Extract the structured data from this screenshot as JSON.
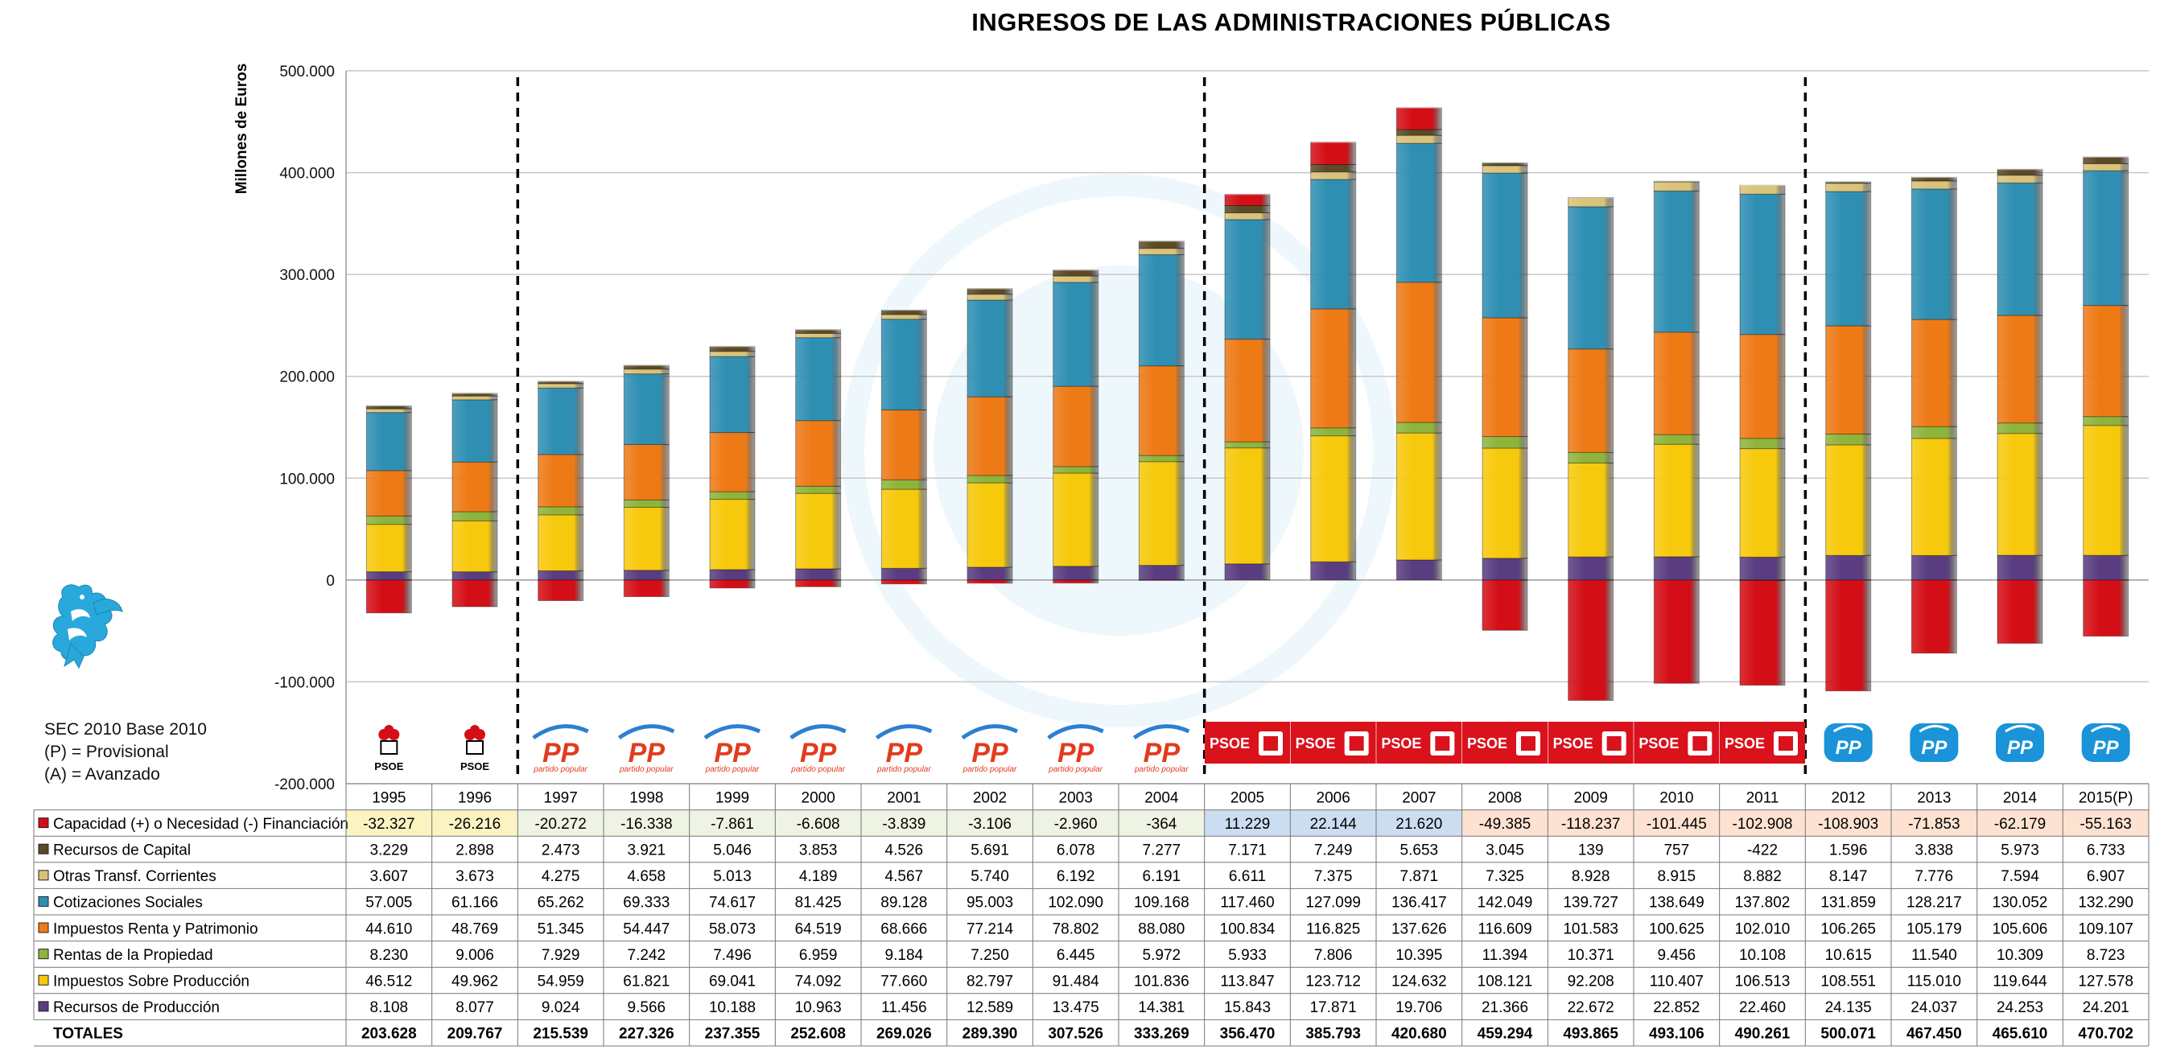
{
  "chart_data": {
    "type": "bar",
    "stacked": true,
    "title": "INGRESOS DE LAS ADMINISTRACIONES PÚBLICAS",
    "ylabel": "Millones de Euros",
    "ylim": [
      -200000,
      500000
    ],
    "yticks": [
      "500.000",
      "400.000",
      "300.000",
      "200.000",
      "100.000",
      "0",
      "-100.000",
      "-200.000"
    ],
    "ytick_values": [
      500000,
      400000,
      300000,
      200000,
      100000,
      0,
      -100000,
      -200000
    ],
    "grid": true,
    "categories": [
      "1995",
      "1996",
      "1997",
      "1998",
      "1999",
      "2000",
      "2001",
      "2002",
      "2003",
      "2004",
      "2005",
      "2006",
      "2007",
      "2008",
      "2009",
      "2010",
      "2011",
      "2012",
      "2013",
      "2014",
      "2015(P)"
    ],
    "series": [
      {
        "name": "Capacidad (+) o Necesidad (-) Financiación",
        "color": "#d40e16",
        "labels": [
          "-32.327",
          "-26.216",
          "-20.272",
          "-16.338",
          "-7.861",
          "-6.608",
          "-3.839",
          "-3.106",
          "-2.960",
          "-364",
          "11.229",
          "22.144",
          "21.620",
          "-49.385",
          "-118.237",
          "-101.445",
          "-102.908",
          "-108.903",
          "-71.853",
          "-62.179",
          "-55.163"
        ],
        "values": [
          -32327,
          -26216,
          -20272,
          -16338,
          -7861,
          -6608,
          -3839,
          -3106,
          -2960,
          -364,
          11229,
          22144,
          21620,
          -49385,
          -118237,
          -101445,
          -102908,
          -108903,
          -71853,
          -62179,
          -55163
        ]
      },
      {
        "name": "Recursos de Capital",
        "color": "#5a4a26",
        "labels": [
          "3.229",
          "2.898",
          "2.473",
          "3.921",
          "5.046",
          "3.853",
          "4.526",
          "5.691",
          "6.078",
          "7.277",
          "7.171",
          "7.249",
          "5.653",
          "3.045",
          "139",
          "757",
          "-422",
          "1.596",
          "3.838",
          "5.973",
          "6.733"
        ],
        "values": [
          3229,
          2898,
          2473,
          3921,
          5046,
          3853,
          4526,
          5691,
          6078,
          7277,
          7171,
          7249,
          5653,
          3045,
          139,
          757,
          -422,
          1596,
          3838,
          5973,
          6733
        ]
      },
      {
        "name": "Otras Transf. Corrientes",
        "color": "#d9c27a",
        "labels": [
          "3.607",
          "3.673",
          "4.275",
          "4.658",
          "5.013",
          "4.189",
          "4.567",
          "5.740",
          "6.192",
          "6.191",
          "6.611",
          "7.375",
          "7.871",
          "7.325",
          "8.928",
          "8.915",
          "8.882",
          "8.147",
          "7.776",
          "7.594",
          "6.907"
        ],
        "values": [
          3607,
          3673,
          4275,
          4658,
          5013,
          4189,
          4567,
          5740,
          6192,
          6191,
          6611,
          7375,
          7871,
          7325,
          8928,
          8915,
          8882,
          8147,
          7776,
          7594,
          6907
        ]
      },
      {
        "name": "Cotizaciones Sociales",
        "color": "#2f8fb3",
        "labels": [
          "57.005",
          "61.166",
          "65.262",
          "69.333",
          "74.617",
          "81.425",
          "89.128",
          "95.003",
          "102.090",
          "109.168",
          "117.460",
          "127.099",
          "136.417",
          "142.049",
          "139.727",
          "138.649",
          "137.802",
          "131.859",
          "128.217",
          "130.052",
          "132.290"
        ],
        "values": [
          57005,
          61166,
          65262,
          69333,
          74617,
          81425,
          89128,
          95003,
          102090,
          109168,
          117460,
          127099,
          136417,
          142049,
          139727,
          138649,
          137802,
          131859,
          128217,
          130052,
          132290
        ]
      },
      {
        "name": "Impuestos Renta y Patrimonio",
        "color": "#ee7a16",
        "labels": [
          "44.610",
          "48.769",
          "51.345",
          "54.447",
          "58.073",
          "64.519",
          "68.666",
          "77.214",
          "78.802",
          "88.080",
          "100.834",
          "116.825",
          "137.626",
          "116.609",
          "101.583",
          "100.625",
          "102.010",
          "106.265",
          "105.179",
          "105.606",
          "109.107"
        ],
        "values": [
          44610,
          48769,
          51345,
          54447,
          58073,
          64519,
          68666,
          77214,
          78802,
          88080,
          100834,
          116825,
          137626,
          116609,
          101583,
          100625,
          102010,
          106265,
          105179,
          105606,
          109107
        ]
      },
      {
        "name": "Rentas de la Propiedad",
        "color": "#8fb43c",
        "labels": [
          "8.230",
          "9.006",
          "7.929",
          "7.242",
          "7.496",
          "6.959",
          "9.184",
          "7.250",
          "6.445",
          "5.972",
          "5.933",
          "7.806",
          "10.395",
          "11.394",
          "10.371",
          "9.456",
          "10.108",
          "10.615",
          "11.540",
          "10.309",
          "8.723"
        ],
        "values": [
          8230,
          9006,
          7929,
          7242,
          7496,
          6959,
          9184,
          7250,
          6445,
          5972,
          5933,
          7806,
          10395,
          11394,
          10371,
          9456,
          10108,
          10615,
          11540,
          10309,
          8723
        ]
      },
      {
        "name": "Impuestos Sobre Producción",
        "color": "#f7c90c",
        "labels": [
          "46.512",
          "49.962",
          "54.959",
          "61.821",
          "69.041",
          "74.092",
          "77.660",
          "82.797",
          "91.484",
          "101.836",
          "113.847",
          "123.712",
          "124.632",
          "108.121",
          "92.208",
          "110.407",
          "106.513",
          "108.551",
          "115.010",
          "119.644",
          "127.578"
        ],
        "values": [
          46512,
          49962,
          54959,
          61821,
          69041,
          74092,
          77660,
          82797,
          91484,
          101836,
          113847,
          123712,
          124632,
          108121,
          92208,
          110407,
          106513,
          108551,
          115010,
          119644,
          127578
        ]
      },
      {
        "name": "Recursos de Producción",
        "color": "#5a3d80",
        "labels": [
          "8.108",
          "8.077",
          "9.024",
          "9.566",
          "10.188",
          "10.963",
          "11.456",
          "12.589",
          "13.475",
          "14.381",
          "15.843",
          "17.871",
          "19.706",
          "21.366",
          "22.672",
          "22.852",
          "22.460",
          "24.135",
          "24.037",
          "24.253",
          "24.201"
        ],
        "values": [
          8108,
          8077,
          9024,
          9566,
          10188,
          10963,
          11456,
          12589,
          13475,
          14381,
          15843,
          17871,
          19706,
          21366,
          22672,
          22852,
          22460,
          24135,
          24037,
          24253,
          24201
        ]
      }
    ],
    "totals": {
      "name": "TOTALES",
      "labels": [
        "203.628",
        "209.767",
        "215.539",
        "227.326",
        "237.355",
        "252.608",
        "269.026",
        "289.390",
        "307.526",
        "333.269",
        "356.470",
        "385.793",
        "420.680",
        "459.294",
        "493.865",
        "493.106",
        "490.261",
        "500.071",
        "467.450",
        "465.610",
        "470.702"
      ]
    },
    "party_logos": [
      "psoe",
      "psoe",
      "pp-old",
      "pp-old",
      "pp-old",
      "pp-old",
      "pp-old",
      "pp-old",
      "pp-old",
      "pp-old",
      "psoe-red",
      "psoe-red",
      "psoe-red",
      "psoe-red",
      "psoe-red",
      "psoe-red",
      "psoe-red",
      "pp-new",
      "pp-new",
      "pp-new",
      "pp-new"
    ],
    "party_text": {
      "psoe": "PSOE",
      "pp": "PP",
      "pp_sub": "partido popular"
    },
    "period_dividers_after": [
      "1996",
      "2004",
      "2011"
    ],
    "highlight_colors": {
      "psoe": "#fbf4c2",
      "pp": "#eef3e4",
      "psoe2": "#ccddf2",
      "deficit": "#fde2d1"
    }
  },
  "notes": {
    "line1": "SEC 2010 Base 2010",
    "line2": "(P) = Provisional",
    "line3": "(A) = Avanzado"
  },
  "logo": {
    "icon": "griffin-logo-icon",
    "color": "#29a8dc"
  }
}
